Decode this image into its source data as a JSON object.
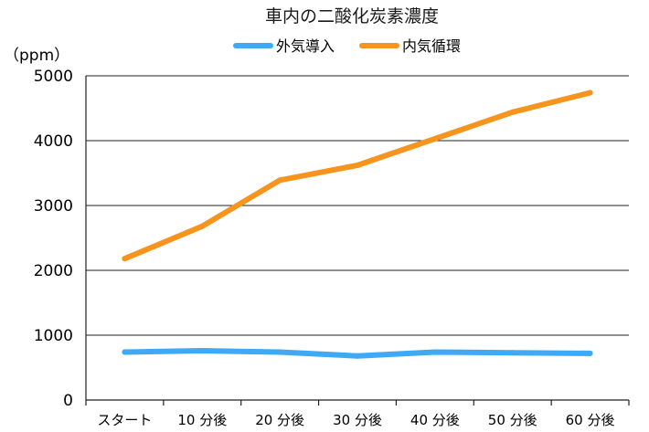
{
  "chart_data": {
    "type": "line",
    "title": "車内の二酸化炭素濃度",
    "ylabel": "（ppm）",
    "xlabel": "",
    "ylim": [
      0,
      5000
    ],
    "yticks": [
      0,
      1000,
      2000,
      3000,
      4000,
      5000
    ],
    "grid": true,
    "legend_position": "top",
    "categories": [
      "スタート",
      "10 分後",
      "20 分後",
      "30 分後",
      "40 分後",
      "50 分後",
      "60 分後"
    ],
    "series": [
      {
        "name": "外気導入",
        "color": "#3fa9f5",
        "values": [
          740,
          760,
          740,
          680,
          740,
          730,
          720
        ]
      },
      {
        "name": "内気循環",
        "color": "#f7941d",
        "values": [
          2180,
          2680,
          3390,
          3620,
          4030,
          4440,
          4740
        ]
      }
    ]
  }
}
